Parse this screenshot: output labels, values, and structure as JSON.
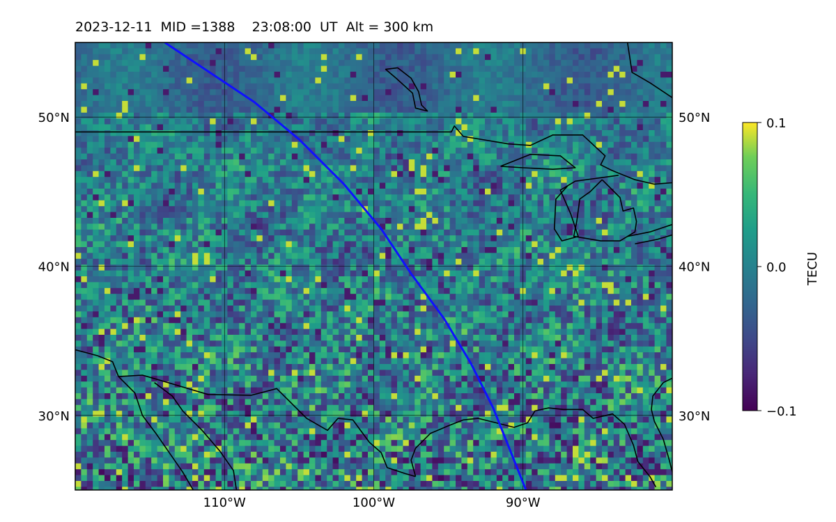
{
  "title": "2023-12-11  MID =1388    23:08:00  UT  Alt = 300 km",
  "map": {
    "lon_range": [
      -120,
      -80
    ],
    "lat_range": [
      25,
      55
    ],
    "lon_ticks": [
      {
        "value": -110,
        "label": "110°W"
      },
      {
        "value": -100,
        "label": "100°W"
      },
      {
        "value": -90,
        "label": "90°W"
      }
    ],
    "lat_ticks": [
      {
        "value": 50,
        "label": "50°N"
      },
      {
        "value": 40,
        "label": "40°N"
      },
      {
        "value": 30,
        "label": "30°N"
      }
    ],
    "track_color": "#1010ff",
    "track": [
      [
        -114,
        55
      ],
      [
        -111,
        53
      ],
      [
        -108,
        51
      ],
      [
        -105,
        48.5
      ],
      [
        -102,
        45.5
      ],
      [
        -99.5,
        42.5
      ],
      [
        -97.5,
        39.5
      ],
      [
        -95.3,
        36.5
      ],
      [
        -93.5,
        33.5
      ],
      [
        -92,
        30.5
      ],
      [
        -90.8,
        27.5
      ],
      [
        -89.8,
        25
      ]
    ],
    "coastlines": [
      [
        [
          -120,
          49
        ],
        [
          -94.8,
          49
        ],
        [
          -94.6,
          49.4
        ],
        [
          -94,
          48.7
        ],
        [
          -91,
          48.2
        ],
        [
          -89.5,
          48.1
        ],
        [
          -88,
          48.8
        ],
        [
          -86,
          48.8
        ],
        [
          -84.5,
          47.4
        ],
        [
          -84.8,
          46.8
        ],
        [
          -84,
          46.4
        ],
        [
          -82.5,
          45.8
        ],
        [
          -81.2,
          45.5
        ],
        [
          -80,
          45.6
        ]
      ],
      [
        [
          -91.5,
          46.7
        ],
        [
          -89.5,
          47.5
        ],
        [
          -87.5,
          47.4
        ],
        [
          -86.5,
          46.6
        ],
        [
          -88,
          46.5
        ],
        [
          -90,
          46.6
        ],
        [
          -91.5,
          46.7
        ]
      ],
      [
        [
          -83.6,
          46.1
        ],
        [
          -85,
          45.9
        ],
        [
          -86.5,
          45.7
        ],
        [
          -87.5,
          45.1
        ],
        [
          -86.8,
          43.5
        ],
        [
          -86.3,
          42
        ],
        [
          -87.4,
          41.7
        ],
        [
          -87.9,
          42.5
        ],
        [
          -87.8,
          44.5
        ],
        [
          -87,
          45.4
        ]
      ],
      [
        [
          -84.7,
          45.8
        ],
        [
          -85.5,
          45
        ],
        [
          -86.2,
          44.5
        ],
        [
          -86.4,
          43
        ],
        [
          -86.6,
          42
        ],
        [
          -84.8,
          41.7
        ],
        [
          -83.5,
          41.7
        ],
        [
          -82.5,
          42.3
        ],
        [
          -82.4,
          43
        ],
        [
          -82.6,
          43.9
        ],
        [
          -83.3,
          43.7
        ],
        [
          -83.5,
          44.6
        ],
        [
          -84.7,
          45.8
        ]
      ],
      [
        [
          -83,
          42
        ],
        [
          -81.5,
          42.3
        ],
        [
          -80,
          42.8
        ]
      ],
      [
        [
          -82.5,
          41.5
        ],
        [
          -81,
          41.8
        ],
        [
          -80,
          42.1
        ]
      ],
      [
        [
          -98.4,
          53.3
        ],
        [
          -97.5,
          52.6
        ],
        [
          -97,
          51.7
        ],
        [
          -96.8,
          50.8
        ],
        [
          -96.4,
          50.4
        ],
        [
          -97.2,
          50.6
        ],
        [
          -97.4,
          51.6
        ],
        [
          -98.5,
          52.6
        ],
        [
          -99.2,
          53.2
        ],
        [
          -98.4,
          53.3
        ]
      ],
      [
        [
          -120,
          34.4
        ],
        [
          -118.5,
          34
        ],
        [
          -117.5,
          33.6
        ],
        [
          -117.1,
          32.6
        ],
        [
          -116,
          31.5
        ],
        [
          -115.5,
          30
        ],
        [
          -114.6,
          28.8
        ],
        [
          -113.7,
          27.5
        ],
        [
          -112.8,
          26.2
        ],
        [
          -112.1,
          25
        ]
      ],
      [
        [
          -117.1,
          32.6
        ],
        [
          -115.5,
          32.7
        ],
        [
          -114.8,
          32.5
        ],
        [
          -111.1,
          31.4
        ],
        [
          -108.2,
          31.35
        ],
        [
          -106.5,
          31.8
        ],
        [
          -104.5,
          29.8
        ],
        [
          -103.1,
          29
        ],
        [
          -102.4,
          29.8
        ],
        [
          -101.4,
          29.7
        ],
        [
          -100.3,
          28.2
        ],
        [
          -99.5,
          27.5
        ],
        [
          -99.1,
          26.5
        ],
        [
          -97.9,
          26.1
        ],
        [
          -97.2,
          25.9
        ]
      ],
      [
        [
          -114.7,
          32.2
        ],
        [
          -113.5,
          31.3
        ],
        [
          -112.8,
          30.3
        ],
        [
          -111.5,
          29
        ],
        [
          -110.3,
          27.6
        ],
        [
          -109.4,
          26.3
        ],
        [
          -109.2,
          25
        ]
      ],
      [
        [
          -97.2,
          25.9
        ],
        [
          -97.5,
          27
        ],
        [
          -97.2,
          27.8
        ],
        [
          -96.2,
          28.8
        ],
        [
          -95,
          29.3
        ],
        [
          -94,
          29.7
        ],
        [
          -93,
          29.8
        ],
        [
          -91.8,
          29.5
        ],
        [
          -90.6,
          29.2
        ],
        [
          -89.7,
          29.5
        ],
        [
          -89.2,
          30.3
        ],
        [
          -88.3,
          30.5
        ],
        [
          -87.3,
          30.4
        ],
        [
          -86,
          30.4
        ],
        [
          -85.3,
          29.8
        ],
        [
          -84,
          30.1
        ],
        [
          -83.2,
          29.4
        ],
        [
          -82.6,
          28
        ],
        [
          -82.3,
          26.9
        ],
        [
          -81.5,
          25.9
        ],
        [
          -81.1,
          25.2
        ]
      ],
      [
        [
          -80,
          32.5
        ],
        [
          -80.6,
          32.2
        ],
        [
          -81.3,
          31.3
        ],
        [
          -81.4,
          30.4
        ],
        [
          -81.2,
          29.6
        ],
        [
          -80.6,
          28.4
        ],
        [
          -80.2,
          27
        ],
        [
          -80,
          26.2
        ]
      ],
      [
        [
          -83,
          55
        ],
        [
          -82.7,
          53
        ],
        [
          -81.5,
          52.3
        ],
        [
          -80,
          51.3
        ]
      ]
    ]
  },
  "colorbar": {
    "label": "TECU",
    "vmin": -0.1,
    "vmax": 0.1,
    "ticks": [
      {
        "value": 0.1,
        "label": "0.1"
      },
      {
        "value": 0.0,
        "label": "0.0"
      },
      {
        "value": -0.1,
        "label": "−0.1"
      }
    ],
    "colormap": "viridis"
  }
}
